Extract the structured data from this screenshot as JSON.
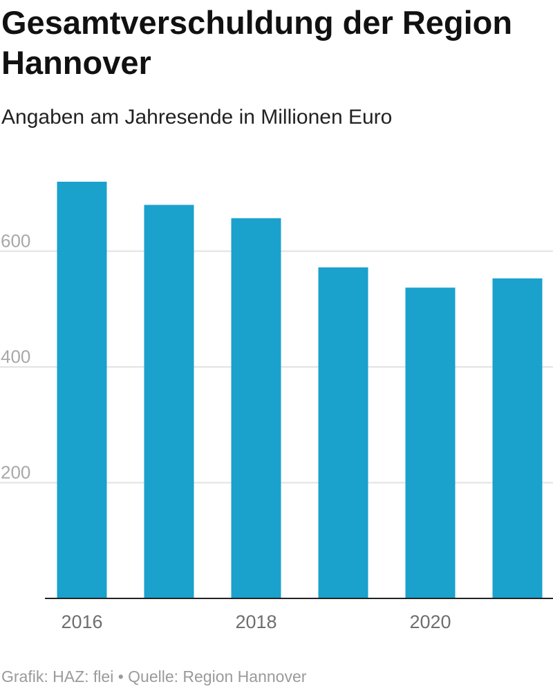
{
  "chart_data": {
    "type": "bar",
    "title": "Gesamtverschuldung der Region Hannover",
    "subtitle": "Angaben am Jahresende in Millionen Euro",
    "categories": [
      "2016",
      "2017",
      "2018",
      "2019",
      "2020",
      "2021"
    ],
    "x_tick_labels": [
      "2016",
      "",
      "2018",
      "",
      "2020",
      ""
    ],
    "values": [
      720,
      680,
      657,
      572,
      537,
      553
    ],
    "ylim": [
      0,
      720
    ],
    "y_ticks": [
      200,
      400,
      600
    ],
    "grid": true,
    "bar_color": "#1aa1cc",
    "xlabel": "",
    "ylabel": ""
  },
  "footer": "Grafik: HAZ: flei • Quelle: Region Hannover"
}
